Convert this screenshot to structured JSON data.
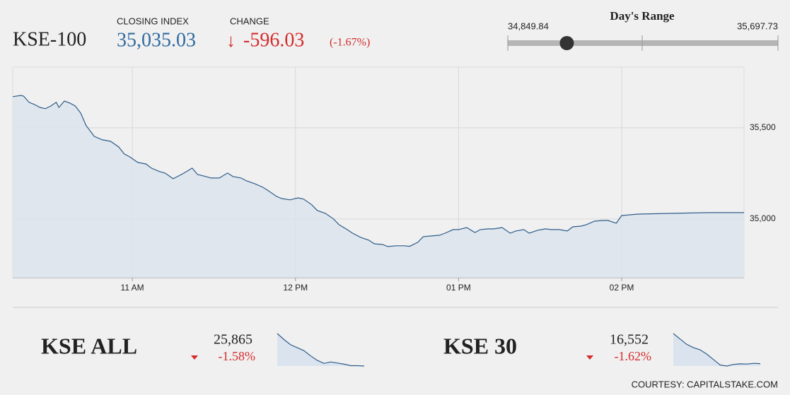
{
  "header": {
    "index_name": "KSE-100",
    "closing_label": "CLOSING INDEX",
    "closing_value": {
      "value": 35035.03,
      "label": "35,035.03"
    },
    "change_label": "CHANGE",
    "change_arrow": "↓",
    "change_value": {
      "value": -596.03,
      "label": "-596.03"
    },
    "change_percent": {
      "value": -1.67,
      "label": "(-1.67%)"
    }
  },
  "day_range": {
    "title": "Day's Range",
    "low": {
      "value": 34849.84,
      "label": "34,849.84"
    },
    "high": {
      "value": 35697.73,
      "label": "35,697.73"
    }
  },
  "chart_data": {
    "type": "area",
    "color": "#2f5d8a",
    "fill": "#dbe4ee",
    "grid": true,
    "x": [
      616,
      619,
      620,
      622,
      624,
      626,
      628,
      630,
      632,
      633,
      635,
      637,
      639,
      641,
      643,
      645,
      646,
      649,
      652,
      655,
      657,
      659,
      662,
      665,
      667,
      670,
      672,
      675,
      677,
      679,
      682,
      684,
      687,
      689,
      692,
      695,
      697,
      700,
      702,
      705,
      708,
      710,
      713,
      715,
      718,
      721,
      723,
      726,
      728,
      731,
      734,
      736,
      739,
      741,
      744,
      747,
      749,
      752,
      754,
      757,
      760,
      762,
      765,
      767,
      770,
      773,
      775,
      778,
      780,
      783,
      786,
      788,
      791,
      793,
      796,
      799,
      801,
      804,
      806,
      809,
      812,
      814,
      817,
      820,
      822,
      825,
      827,
      830,
      833,
      835,
      838,
      840,
      846,
      859,
      872,
      885
    ],
    "values": [
      35671,
      35678,
      35674,
      35640,
      35628,
      35612,
      35605,
      35620,
      35640,
      35612,
      35647,
      35636,
      35620,
      35581,
      35512,
      35473,
      35453,
      35434,
      35426,
      35395,
      35357,
      35341,
      35310,
      35302,
      35279,
      35260,
      35252,
      35221,
      35236,
      35252,
      35279,
      35244,
      35233,
      35225,
      35225,
      35252,
      35233,
      35225,
      35209,
      35194,
      35174,
      35155,
      35124,
      35112,
      35105,
      35116,
      35109,
      35078,
      35047,
      35031,
      35000,
      34969,
      34942,
      34922,
      34899,
      34884,
      34864,
      34860,
      34849,
      34853,
      34853,
      34850,
      34872,
      34903,
      34907,
      34911,
      34922,
      34942,
      34942,
      34953,
      34926,
      34942,
      34946,
      34946,
      34953,
      34922,
      34934,
      34942,
      34922,
      34938,
      34946,
      34942,
      34942,
      34934,
      34957,
      34961,
      34969,
      34988,
      34992,
      34992,
      34977,
      35019,
      35027,
      35031,
      35035,
      35035
    ],
    "xlim": [
      616,
      885
    ],
    "xticks": [
      {
        "value": 660,
        "label": "11 AM"
      },
      {
        "value": 720,
        "label": "12 PM"
      },
      {
        "value": 780,
        "label": "01 PM"
      },
      {
        "value": 840,
        "label": "02 PM"
      }
    ],
    "ylim": [
      34678,
      35833
    ],
    "yticks": [
      {
        "value": 35000,
        "label": "35,000"
      },
      {
        "value": 35500,
        "label": "35,500"
      }
    ]
  },
  "tickers": [
    {
      "name": "KSE ALL",
      "value": {
        "value": 25865,
        "label": "25,865"
      },
      "change": {
        "value": -1.58,
        "label": "-1.58%"
      },
      "sparkline": [
        26300,
        26220,
        26150,
        26110,
        26070,
        26000,
        25940,
        25900,
        25920,
        25905,
        25890,
        25870,
        25870,
        25865
      ]
    },
    {
      "name": "KSE 30",
      "value": {
        "value": 16552,
        "label": "16,552"
      },
      "change": {
        "value": -1.62,
        "label": "-1.62%"
      },
      "sparkline": [
        16830,
        16780,
        16730,
        16700,
        16680,
        16640,
        16590,
        16540,
        16530,
        16545,
        16550,
        16548,
        16555,
        16552
      ]
    }
  ],
  "footer": "COURTESY: CAPITALSTAKE.COM"
}
